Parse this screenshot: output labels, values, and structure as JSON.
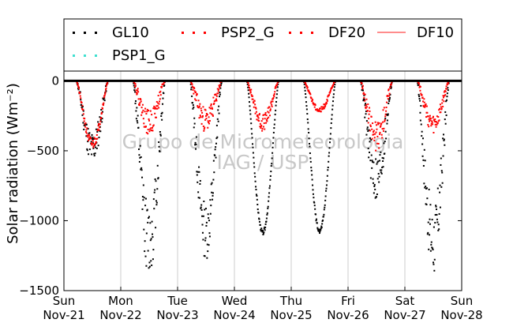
{
  "chart_data": {
    "type": "scatter",
    "ylabel": "Solar radiation (Wm⁻²)",
    "ylim": [
      -1500,
      70
    ],
    "yticks": [
      0,
      -500,
      -1000,
      -1500
    ],
    "ytick_labels": [
      "0",
      "−500",
      "−1000",
      "−1500"
    ],
    "xlim": [
      0,
      7
    ],
    "xticks": [
      {
        "day": 0,
        "line1": "Sun",
        "line2": "Nov-21"
      },
      {
        "day": 1,
        "line1": "Mon",
        "line2": "Nov-22"
      },
      {
        "day": 2,
        "line1": "Tue",
        "line2": "Nov-23"
      },
      {
        "day": 3,
        "line1": "Wed",
        "line2": "Nov-24"
      },
      {
        "day": 4,
        "line1": "Thu",
        "line2": "Nov-25"
      },
      {
        "day": 5,
        "line1": "Fri",
        "line2": "Nov-26"
      },
      {
        "day": 6,
        "line1": "Sat",
        "line2": "Nov-27"
      },
      {
        "day": 7,
        "line1": "Sun",
        "line2": "Nov-28"
      }
    ],
    "grid": "vertical",
    "zero_line": true,
    "legend_position": "top, above plot",
    "legend": [
      {
        "name": "GL10",
        "color": "#000000",
        "style": "dots"
      },
      {
        "name": "PSP2_G",
        "color": "#ff0000",
        "style": "dots"
      },
      {
        "name": "DF20",
        "color": "#ff0000",
        "style": "dots"
      },
      {
        "name": "DF10",
        "color": "#ff6666",
        "style": "line"
      },
      {
        "name": "PSP1_G",
        "color": "#40e0d0",
        "style": "dots"
      }
    ],
    "watermark": [
      "Grupo de Micrometeorologia",
      "IAG / USP"
    ],
    "series": [
      {
        "name": "GL10",
        "color": "#000000",
        "days": [
          {
            "day": 0,
            "sunrise": 0.22,
            "sunset": 0.78,
            "peak": -480,
            "noise": 120,
            "seed": 11
          },
          {
            "day": 1,
            "sunrise": 0.22,
            "sunset": 0.78,
            "peak": -1150,
            "noise": 260,
            "seed": 12
          },
          {
            "day": 2,
            "sunrise": 0.22,
            "sunset": 0.78,
            "peak": -1080,
            "noise": 200,
            "seed": 13
          },
          {
            "day": 3,
            "sunrise": 0.22,
            "sunset": 0.78,
            "peak": -1085,
            "noise": 15,
            "seed": 14
          },
          {
            "day": 4,
            "sunrise": 0.22,
            "sunset": 0.78,
            "peak": -1075,
            "noise": 15,
            "seed": 15
          },
          {
            "day": 5,
            "sunrise": 0.22,
            "sunset": 0.78,
            "peak": -700,
            "noise": 180,
            "seed": 16
          },
          {
            "day": 6,
            "sunrise": 0.22,
            "sunset": 0.78,
            "peak": -1150,
            "noise": 260,
            "seed": 17
          }
        ]
      },
      {
        "name": "PSP2_G",
        "color": "#ff0000",
        "days": [
          {
            "day": 0,
            "sunrise": 0.22,
            "sunset": 0.78,
            "peak": -450,
            "noise": 40,
            "seed": 21
          },
          {
            "day": 1,
            "sunrise": 0.22,
            "sunset": 0.78,
            "peak": -300,
            "noise": 90,
            "seed": 22
          },
          {
            "day": 2,
            "sunrise": 0.22,
            "sunset": 0.78,
            "peak": -280,
            "noise": 90,
            "seed": 23
          },
          {
            "day": 3,
            "sunrise": 0.22,
            "sunset": 0.78,
            "peak": -300,
            "noise": 60,
            "seed": 24
          },
          {
            "day": 4,
            "sunrise": 0.22,
            "sunset": 0.78,
            "peak": -210,
            "noise": 20,
            "seed": 25
          },
          {
            "day": 5,
            "sunrise": 0.22,
            "sunset": 0.78,
            "peak": -400,
            "noise": 110,
            "seed": 26
          },
          {
            "day": 6,
            "sunrise": 0.22,
            "sunset": 0.78,
            "peak": -320,
            "noise": 70,
            "seed": 27
          }
        ]
      },
      {
        "name": "PSP1_G",
        "color": "#40e0d0",
        "days": []
      }
    ]
  }
}
